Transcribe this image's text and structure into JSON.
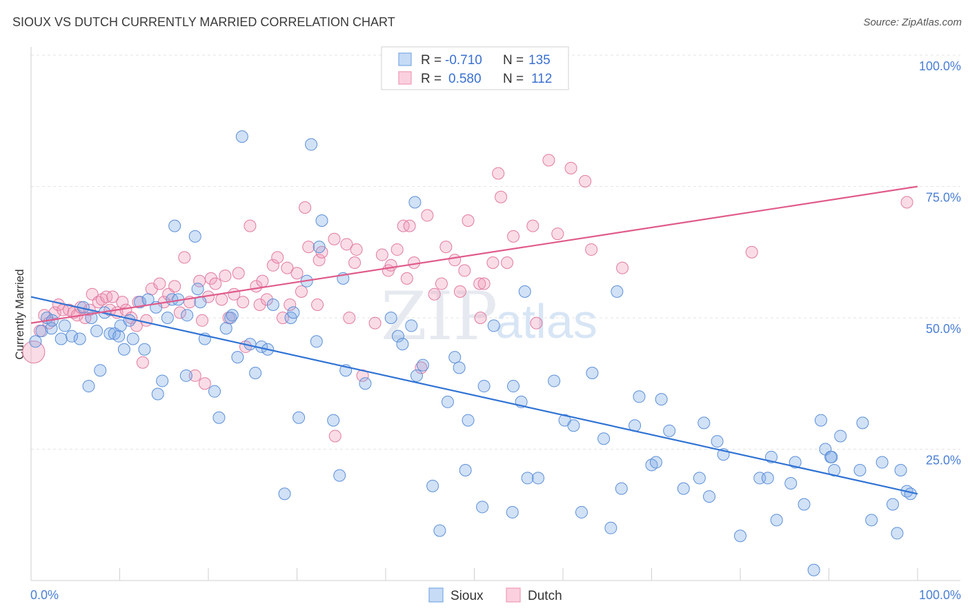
{
  "title": "SIOUX VS DUTCH CURRENTLY MARRIED CORRELATION CHART",
  "source": "Source: ZipAtlas.com",
  "watermark": {
    "zip": "ZIP",
    "atlas": "atlas"
  },
  "legend": {
    "rows": [
      {
        "r_label": "R =",
        "r_value": "-0.710",
        "n_label": "N =",
        "n_value": "135",
        "color": "#7aa9e6"
      },
      {
        "r_label": "R =",
        "r_value": "0.580",
        "n_label": "N =",
        "n_value": "112",
        "color": "#f09ab6"
      }
    ]
  },
  "bottom_legend": [
    {
      "label": "Sioux",
      "color": "#7aa9e6"
    },
    {
      "label": "Dutch",
      "color": "#f09ab6"
    }
  ],
  "chart_data": {
    "type": "scatter",
    "title": "SIOUX VS DUTCH CURRENTLY MARRIED CORRELATION CHART",
    "xlabel": "",
    "ylabel": "Currently Married",
    "xlim": [
      0,
      100
    ],
    "ylim": [
      0,
      100
    ],
    "x_tick_labels": [
      "0.0%",
      "100.0%"
    ],
    "y_tick_labels": [
      "25.0%",
      "50.0%",
      "75.0%",
      "100.0%"
    ],
    "y_ticks": [
      25,
      50,
      75,
      100
    ],
    "grid": true,
    "legend_position": "top-center",
    "series": [
      {
        "name": "Sioux",
        "color": "#7aa9e6",
        "stroke": "#5b8fd8",
        "trend": {
          "x": [
            0,
            100
          ],
          "y": [
            54.0,
            16.5
          ],
          "color": "#2f73d4"
        },
        "points": [
          [
            0.5,
            45.5
          ],
          [
            1.2,
            47.5
          ],
          [
            1.8,
            50.0
          ],
          [
            2.3,
            48.0
          ],
          [
            2.4,
            49.5
          ],
          [
            3.4,
            46.0
          ],
          [
            3.8,
            48.5
          ],
          [
            4.6,
            46.5
          ],
          [
            5.5,
            46.0
          ],
          [
            5.9,
            52.0
          ],
          [
            6.5,
            37.0
          ],
          [
            6.8,
            50.0
          ],
          [
            7.4,
            47.5
          ],
          [
            7.8,
            40.0
          ],
          [
            8.3,
            51.0
          ],
          [
            8.9,
            47.0
          ],
          [
            9.4,
            47.0
          ],
          [
            9.9,
            46.5
          ],
          [
            10.1,
            48.5
          ],
          [
            10.5,
            44.0
          ],
          [
            11.1,
            49.5
          ],
          [
            11.5,
            46.0
          ],
          [
            12.3,
            53.0
          ],
          [
            12.8,
            44.0
          ],
          [
            13.2,
            53.5
          ],
          [
            14.1,
            52.0
          ],
          [
            14.3,
            35.5
          ],
          [
            14.8,
            38.0
          ],
          [
            15.4,
            50.0
          ],
          [
            15.9,
            53.5
          ],
          [
            16.2,
            67.5
          ],
          [
            16.6,
            53.5
          ],
          [
            17.5,
            39.0
          ],
          [
            17.6,
            50.5
          ],
          [
            18.5,
            65.5
          ],
          [
            18.8,
            55.5
          ],
          [
            19.1,
            53.0
          ],
          [
            19.6,
            46.0
          ],
          [
            20.7,
            36.0
          ],
          [
            21.2,
            31.0
          ],
          [
            22.0,
            48.0
          ],
          [
            22.5,
            50.0
          ],
          [
            22.7,
            50.5
          ],
          [
            23.3,
            42.5
          ],
          [
            23.8,
            84.5
          ],
          [
            24.7,
            45.0
          ],
          [
            25.3,
            39.5
          ],
          [
            26.0,
            44.5
          ],
          [
            26.7,
            44.0
          ],
          [
            27.3,
            52.5
          ],
          [
            28.6,
            16.5
          ],
          [
            29.3,
            50.0
          ],
          [
            29.6,
            51.0
          ],
          [
            30.2,
            31.0
          ],
          [
            31.1,
            57.0
          ],
          [
            31.6,
            83.0
          ],
          [
            32.2,
            45.5
          ],
          [
            32.5,
            63.5
          ],
          [
            32.8,
            68.5
          ],
          [
            34.1,
            30.5
          ],
          [
            34.8,
            20.0
          ],
          [
            35.2,
            57.5
          ],
          [
            35.5,
            40.0
          ],
          [
            37.7,
            37.5
          ],
          [
            40.6,
            50.0
          ],
          [
            41.4,
            46.5
          ],
          [
            41.9,
            45.0
          ],
          [
            42.9,
            48.5
          ],
          [
            43.3,
            72.0
          ],
          [
            43.5,
            39.0
          ],
          [
            44.2,
            41.0
          ],
          [
            45.3,
            18.0
          ],
          [
            46.1,
            9.5
          ],
          [
            47.0,
            34.0
          ],
          [
            47.8,
            42.5
          ],
          [
            48.3,
            40.5
          ],
          [
            49.0,
            21.0
          ],
          [
            49.3,
            30.5
          ],
          [
            50.9,
            14.0
          ],
          [
            51.1,
            37.0
          ],
          [
            52.2,
            48.5
          ],
          [
            54.3,
            13.0
          ],
          [
            54.4,
            37.0
          ],
          [
            55.3,
            34.0
          ],
          [
            55.7,
            55.0
          ],
          [
            56.0,
            19.5
          ],
          [
            57.2,
            19.5
          ],
          [
            59.0,
            38.0
          ],
          [
            60.2,
            30.5
          ],
          [
            61.2,
            29.5
          ],
          [
            62.1,
            13.0
          ],
          [
            63.3,
            39.5
          ],
          [
            64.6,
            27.0
          ],
          [
            65.4,
            10.0
          ],
          [
            66.1,
            55.0
          ],
          [
            66.6,
            17.5
          ],
          [
            68.1,
            29.5
          ],
          [
            68.6,
            35.0
          ],
          [
            70.0,
            22.0
          ],
          [
            70.5,
            22.5
          ],
          [
            71.1,
            34.5
          ],
          [
            72.0,
            28.5
          ],
          [
            73.6,
            17.5
          ],
          [
            75.4,
            19.5
          ],
          [
            75.9,
            30.0
          ],
          [
            76.5,
            16.0
          ],
          [
            77.4,
            26.5
          ],
          [
            78.1,
            24.0
          ],
          [
            80.0,
            8.5
          ],
          [
            82.2,
            19.5
          ],
          [
            83.1,
            19.5
          ],
          [
            83.5,
            23.5
          ],
          [
            84.1,
            11.5
          ],
          [
            85.7,
            18.5
          ],
          [
            86.2,
            22.5
          ],
          [
            87.2,
            14.5
          ],
          [
            88.3,
            2.0
          ],
          [
            89.1,
            30.5
          ],
          [
            89.6,
            25.0
          ],
          [
            90.2,
            23.5
          ],
          [
            90.3,
            23.5
          ],
          [
            90.6,
            21.0
          ],
          [
            91.3,
            27.5
          ],
          [
            93.5,
            21.0
          ],
          [
            93.8,
            30.0
          ],
          [
            94.8,
            11.5
          ],
          [
            96.0,
            22.5
          ],
          [
            97.2,
            14.5
          ],
          [
            97.7,
            9.0
          ],
          [
            98.1,
            21.0
          ],
          [
            98.8,
            17.0
          ],
          [
            99.2,
            16.5
          ]
        ]
      },
      {
        "name": "Dutch",
        "color": "#f09ab6",
        "stroke": "#e07aa0",
        "trend": {
          "x": [
            0,
            100
          ],
          "y": [
            49.0,
            75.0
          ],
          "color": "#e05a8a"
        },
        "points": [
          [
            0.3,
            43.5
          ],
          [
            1.0,
            47.5
          ],
          [
            1.5,
            50.5
          ],
          [
            2.0,
            49.0
          ],
          [
            2.7,
            51.0
          ],
          [
            3.1,
            52.5
          ],
          [
            3.6,
            51.5
          ],
          [
            4.3,
            51.5
          ],
          [
            4.8,
            51.0
          ],
          [
            5.2,
            50.5
          ],
          [
            5.6,
            52.0
          ],
          [
            6.1,
            50.0
          ],
          [
            6.6,
            51.5
          ],
          [
            6.9,
            54.5
          ],
          [
            7.6,
            53.0
          ],
          [
            8.0,
            53.5
          ],
          [
            8.5,
            54.0
          ],
          [
            8.9,
            51.5
          ],
          [
            9.2,
            54.0
          ],
          [
            9.7,
            51.0
          ],
          [
            10.3,
            53.0
          ],
          [
            10.7,
            51.5
          ],
          [
            11.3,
            50.0
          ],
          [
            11.9,
            48.5
          ],
          [
            12.1,
            53.0
          ],
          [
            12.6,
            41.5
          ],
          [
            13.0,
            49.5
          ],
          [
            13.6,
            55.5
          ],
          [
            14.5,
            56.5
          ],
          [
            15.0,
            53.0
          ],
          [
            15.5,
            54.5
          ],
          [
            16.2,
            56.0
          ],
          [
            16.8,
            51.0
          ],
          [
            17.3,
            61.5
          ],
          [
            17.9,
            53.0
          ],
          [
            18.5,
            39.0
          ],
          [
            19.0,
            57.0
          ],
          [
            19.3,
            49.5
          ],
          [
            19.6,
            37.5
          ],
          [
            20.0,
            54.0
          ],
          [
            20.3,
            57.5
          ],
          [
            20.8,
            56.5
          ],
          [
            21.5,
            53.5
          ],
          [
            21.9,
            58.0
          ],
          [
            22.3,
            50.0
          ],
          [
            22.9,
            54.5
          ],
          [
            23.4,
            58.5
          ],
          [
            23.9,
            53.0
          ],
          [
            24.2,
            44.5
          ],
          [
            24.7,
            67.5
          ],
          [
            25.4,
            56.0
          ],
          [
            25.8,
            52.5
          ],
          [
            26.1,
            57.0
          ],
          [
            26.6,
            53.5
          ],
          [
            27.3,
            60.0
          ],
          [
            27.8,
            61.5
          ],
          [
            28.4,
            50.0
          ],
          [
            28.9,
            59.5
          ],
          [
            29.2,
            52.5
          ],
          [
            30.0,
            58.5
          ],
          [
            30.5,
            55.0
          ],
          [
            30.9,
            71.0
          ],
          [
            31.3,
            63.5
          ],
          [
            32.3,
            52.5
          ],
          [
            32.5,
            61.0
          ],
          [
            32.8,
            62.5
          ],
          [
            34.2,
            65.0
          ],
          [
            34.3,
            27.5
          ],
          [
            35.6,
            64.0
          ],
          [
            35.9,
            50.0
          ],
          [
            36.5,
            60.5
          ],
          [
            36.7,
            63.0
          ],
          [
            37.4,
            39.0
          ],
          [
            38.8,
            49.0
          ],
          [
            39.6,
            62.0
          ],
          [
            40.3,
            59.0
          ],
          [
            40.6,
            60.0
          ],
          [
            41.3,
            63.0
          ],
          [
            42.0,
            67.5
          ],
          [
            42.4,
            57.5
          ],
          [
            42.7,
            67.5
          ],
          [
            43.2,
            60.5
          ],
          [
            44.0,
            40.5
          ],
          [
            44.7,
            69.5
          ],
          [
            45.5,
            54.5
          ],
          [
            46.3,
            56.5
          ],
          [
            46.8,
            63.5
          ],
          [
            47.8,
            61.0
          ],
          [
            48.4,
            55.0
          ],
          [
            48.9,
            59.0
          ],
          [
            49.3,
            68.5
          ],
          [
            50.6,
            56.5
          ],
          [
            50.7,
            50.0
          ],
          [
            51.1,
            56.5
          ],
          [
            52.1,
            60.5
          ],
          [
            52.7,
            77.5
          ],
          [
            53.0,
            73.0
          ],
          [
            53.7,
            60.5
          ],
          [
            54.4,
            65.5
          ],
          [
            56.6,
            67.5
          ],
          [
            57.0,
            49.0
          ],
          [
            58.4,
            80.0
          ],
          [
            59.4,
            66.0
          ],
          [
            60.9,
            78.5
          ],
          [
            62.5,
            76.0
          ],
          [
            63.2,
            63.0
          ],
          [
            66.7,
            59.5
          ],
          [
            81.3,
            62.5
          ],
          [
            98.8,
            72.0
          ]
        ]
      }
    ]
  }
}
